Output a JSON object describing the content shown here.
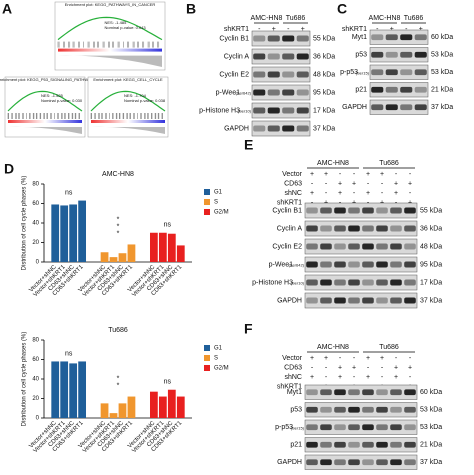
{
  "panels": {
    "A": {
      "label": "A",
      "plots": [
        {
          "title": "Enrichment plot: KEGG_PATHWAYS_IN_CANCER",
          "nes": "NES: -1.485",
          "pval": "Nominal p-value: 0.043"
        },
        {
          "title": "Enrichment plot: KEGG_P53_SIGNALING_PATHWAY",
          "nes": "NES: -1.525",
          "pval": "Nominal p-value: 0.030"
        },
        {
          "title": "Enrichment plot: KEGG_CELL_CYCLE",
          "nes": "NES: -1.704",
          "pval": "Nominal p-value: 0.038"
        }
      ]
    },
    "B": {
      "label": "B",
      "groups": [
        "AMC-HN8",
        "Tu686"
      ],
      "conditions": [
        {
          "name": "shKRT1",
          "signs": [
            "-",
            "+",
            "-",
            "+"
          ]
        }
      ],
      "rows": [
        {
          "name": "Cyclin B1",
          "mw": "55 kDa"
        },
        {
          "name": "Cyclin A",
          "mw": "36 kDa"
        },
        {
          "name": "Cyclin E2",
          "mw": "48 kDa"
        },
        {
          "name": "p-Wee1",
          "site": "(Ser642)",
          "mw": "95 kDa"
        },
        {
          "name": "p-Histone H3",
          "site": "(Ser10)",
          "mw": "17 kDa"
        },
        {
          "name": "GAPDH",
          "mw": "37 kDa"
        }
      ]
    },
    "C": {
      "label": "C",
      "groups": [
        "AMC-HN8",
        "Tu686"
      ],
      "conditions": [
        {
          "name": "shKRT1",
          "signs": [
            "-",
            "+",
            "-",
            "+"
          ]
        }
      ],
      "rows": [
        {
          "name": "Myt1",
          "mw": "60 kDa"
        },
        {
          "name": "p53",
          "mw": "53 kDa"
        },
        {
          "name": "p-p53",
          "site": "(Ser15)",
          "mw": "53 kDa"
        },
        {
          "name": "p21",
          "mw": "21 kDa"
        },
        {
          "name": "GAPDH",
          "mw": "37 kDa"
        }
      ]
    },
    "D": {
      "label": "D"
    },
    "E": {
      "label": "E",
      "groups": [
        "AMC-HN8",
        "Tu686"
      ],
      "conditions": [
        {
          "name": "Vector",
          "signs": [
            "+",
            "+",
            "-",
            "-",
            "+",
            "+",
            "-",
            "-"
          ]
        },
        {
          "name": "CD63",
          "signs": [
            "-",
            "-",
            "+",
            "+",
            "-",
            "-",
            "+",
            "+"
          ]
        },
        {
          "name": "shNC",
          "signs": [
            "+",
            "-",
            "+",
            "-",
            "+",
            "-",
            "+",
            "-"
          ]
        },
        {
          "name": "shKRT1",
          "signs": [
            "-",
            "+",
            "-",
            "+",
            "-",
            "+",
            "-",
            "+"
          ]
        }
      ],
      "rows": [
        {
          "name": "Cyclin B1",
          "mw": "55 kDa"
        },
        {
          "name": "Cyclin A",
          "mw": "36 kDa"
        },
        {
          "name": "Cyclin E2",
          "mw": "48 kDa"
        },
        {
          "name": "p-Wee1",
          "site": "(Ser642)",
          "mw": "95 kDa"
        },
        {
          "name": "p-Histone H3",
          "site": "(Ser10)",
          "mw": "17 kDa"
        },
        {
          "name": "GAPDH",
          "mw": "37 kDa"
        }
      ]
    },
    "F": {
      "label": "F",
      "groups": [
        "AMC-HN8",
        "Tu686"
      ],
      "conditions": [
        {
          "name": "Vector",
          "signs": [
            "+",
            "+",
            "-",
            "-",
            "+",
            "+",
            "-",
            "-"
          ]
        },
        {
          "name": "CD63",
          "signs": [
            "-",
            "-",
            "+",
            "+",
            "-",
            "-",
            "+",
            "+"
          ]
        },
        {
          "name": "shNC",
          "signs": [
            "+",
            "-",
            "+",
            "-",
            "+",
            "-",
            "+",
            "-"
          ]
        },
        {
          "name": "shKRT1",
          "signs": [
            "-",
            "+",
            "-",
            "+",
            "-",
            "+",
            "-",
            "+"
          ]
        }
      ],
      "rows": [
        {
          "name": "Myt1",
          "mw": "60 kDa"
        },
        {
          "name": "p53",
          "mw": "53 kDa"
        },
        {
          "name": "p-p53",
          "site": "(Ser15)",
          "mw": "53 kDa"
        },
        {
          "name": "p21",
          "mw": "21 kDa"
        },
        {
          "name": "GAPDH",
          "mw": "37 kDa"
        }
      ]
    }
  },
  "chart_data": [
    {
      "type": "bar",
      "title": "AMC-HN8",
      "y_label": "Distribution of cell cycle phases (%)",
      "categories": [
        "Vector+shNC",
        "Vector+shKRT1",
        "CD63+shNC",
        "CD63+shKRT1"
      ],
      "series": [
        {
          "name": "G1",
          "color": "#1f5f9a",
          "values": [
            59,
            58,
            59,
            63
          ]
        },
        {
          "name": "S",
          "color": "#f0962e",
          "values": [
            10,
            5,
            9,
            18
          ]
        },
        {
          "name": "G2/M",
          "color": "#e8201f",
          "values": [
            30,
            30,
            29,
            17
          ]
        }
      ],
      "ylim": [
        0,
        80
      ],
      "yticks": [
        0,
        20,
        40,
        60,
        80
      ],
      "legend": "right",
      "annotations": [
        "ns",
        "*",
        "*",
        "*",
        "ns"
      ]
    },
    {
      "type": "bar",
      "title": "Tu686",
      "y_label": "Distribution of cell cycle phases (%)",
      "categories": [
        "Vector+shNC",
        "Vector+shKRT1",
        "CD63+shNC",
        "CD63+shKRT1"
      ],
      "series": [
        {
          "name": "G1",
          "color": "#1f5f9a",
          "values": [
            58,
            58,
            56,
            58
          ]
        },
        {
          "name": "S",
          "color": "#f0962e",
          "values": [
            15,
            5,
            15,
            22
          ]
        },
        {
          "name": "G2/M",
          "color": "#e8201f",
          "values": [
            27,
            22,
            29,
            22
          ]
        }
      ],
      "ylim": [
        0,
        80
      ],
      "yticks": [
        0,
        20,
        40,
        60,
        80
      ],
      "legend": "right",
      "annotations": [
        "ns",
        "*",
        "*",
        "ns"
      ]
    }
  ]
}
